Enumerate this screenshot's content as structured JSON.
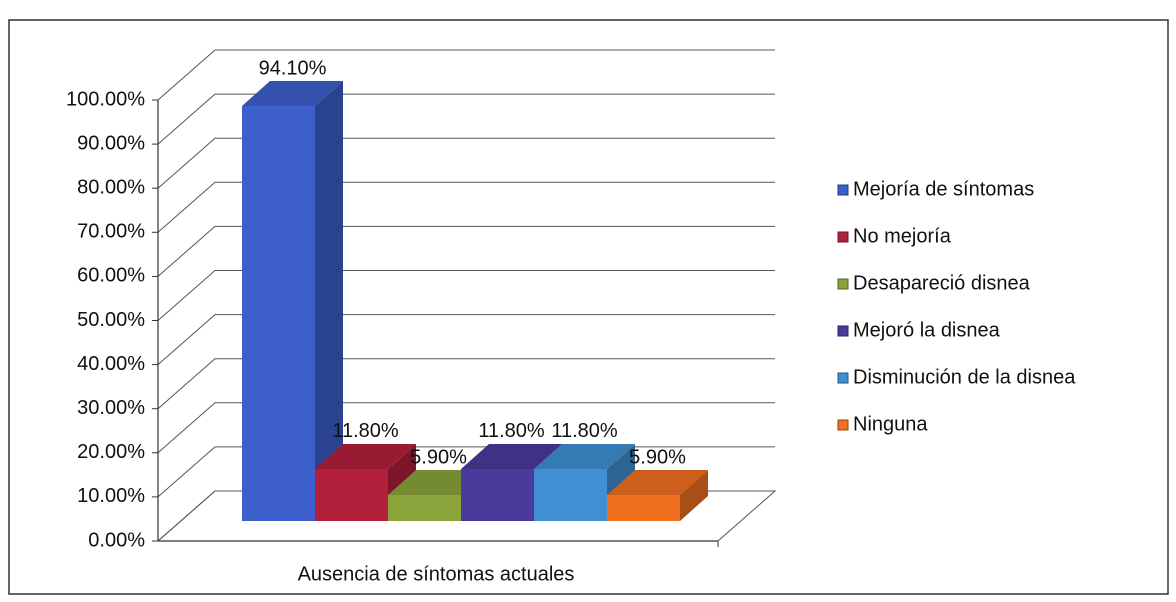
{
  "chart_data": {
    "type": "bar3d",
    "categories": [
      "Ausencia de síntomas actuales"
    ],
    "series": [
      {
        "name": "Mejoría de síntomas",
        "color": "#3c5fcc",
        "values": [
          94.1
        ],
        "value_labels": [
          "94.10%"
        ]
      },
      {
        "name": "No mejoría",
        "color": "#b3203c",
        "values": [
          11.8
        ],
        "value_labels": [
          "11.80%"
        ]
      },
      {
        "name": "Desapareció disnea",
        "color": "#8aa33a",
        "values": [
          5.9
        ],
        "value_labels": [
          "5.90%"
        ]
      },
      {
        "name": "Mejoró la disnea",
        "color": "#4b3a9c",
        "values": [
          11.8
        ],
        "value_labels": [
          "11.80%"
        ]
      },
      {
        "name": "Disminución de la disnea",
        "color": "#3f8fd2",
        "values": [
          11.8
        ],
        "value_labels": [
          "11.80%"
        ]
      },
      {
        "name": "Ninguna",
        "color": "#f07020",
        "values": [
          5.9
        ],
        "value_labels": [
          "5.90%"
        ]
      }
    ],
    "ylim": [
      0,
      100
    ],
    "yticks": [
      {
        "value": 0,
        "label": "0.00%"
      },
      {
        "value": 10,
        "label": "10.00%"
      },
      {
        "value": 20,
        "label": "20.00%"
      },
      {
        "value": 30,
        "label": "30.00%"
      },
      {
        "value": 40,
        "label": "40.00%"
      },
      {
        "value": 50,
        "label": "50.00%"
      },
      {
        "value": 60,
        "label": "60.00%"
      },
      {
        "value": 70,
        "label": "70.00%"
      },
      {
        "value": 80,
        "label": "80.00%"
      },
      {
        "value": 90,
        "label": "90.00%"
      },
      {
        "value": 100,
        "label": "100.00%"
      }
    ],
    "grid": true,
    "legend": "right"
  }
}
